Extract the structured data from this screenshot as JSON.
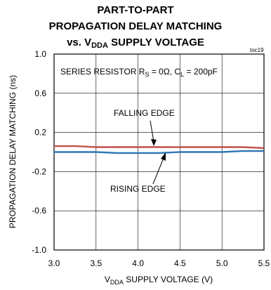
{
  "chart_data": {
    "type": "line",
    "title_lines": [
      "PART-TO-PART",
      "PROPAGATION DELAY MATCHING",
      "vs. V",
      "DDA",
      " SUPPLY VOLTAGE"
    ],
    "tag": "toc19",
    "xlabel": {
      "main": "V",
      "sub": "DDA",
      "rest": " SUPPLY VOLTAGE (V)"
    },
    "ylabel": "PROPAGATION DELAY MATCHING (ns)",
    "xlim": [
      3.0,
      5.5
    ],
    "ylim": [
      -1.0,
      1.0
    ],
    "x_ticks": [
      "3.0",
      "3.5",
      "4.0",
      "4.5",
      "5.0",
      "5.5"
    ],
    "y_ticks": [
      "1.0",
      "0.6",
      "0.2",
      "-0.2",
      "-0.6",
      "-1.0"
    ],
    "grid": true,
    "condition": {
      "p1": "SERIES RESISTOR R",
      "s1": "S",
      "p2": " = 0Ω, C",
      "s2": "L",
      "p3": " = 200pF"
    },
    "annotations": [
      "FALLING EDGE",
      "RISING EDGE"
    ],
    "series": [
      {
        "color": "#c0504d",
        "x": [
          3.0,
          3.25,
          3.5,
          3.75,
          4.0,
          4.25,
          4.5,
          4.75,
          5.0,
          5.25,
          5.5
        ],
        "y": [
          0.06,
          0.06,
          0.05,
          0.05,
          0.05,
          0.05,
          0.05,
          0.05,
          0.05,
          0.05,
          0.04
        ]
      },
      {
        "color": "#2e75b6",
        "x": [
          3.0,
          3.25,
          3.5,
          3.75,
          4.0,
          4.25,
          4.5,
          4.75,
          5.0,
          5.25,
          5.5
        ],
        "y": [
          0.0,
          0.0,
          0.0,
          -0.01,
          -0.01,
          -0.01,
          0.0,
          0.0,
          0.0,
          0.01,
          0.01
        ]
      }
    ]
  }
}
